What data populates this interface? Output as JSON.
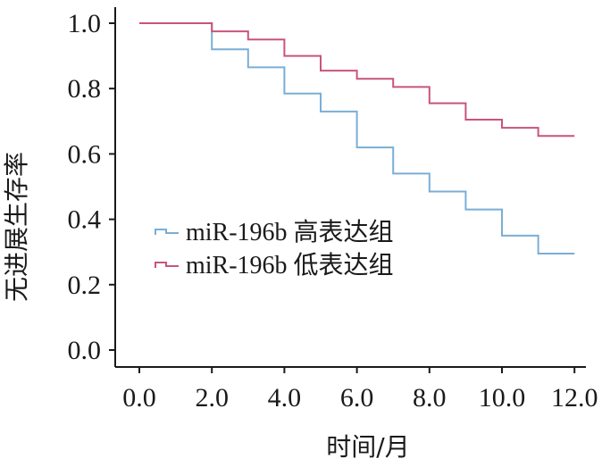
{
  "chart_data": {
    "type": "line",
    "step": true,
    "xlabel": "时间/月",
    "ylabel": "无进展生存率",
    "xlim": [
      -0.7,
      14.2
    ],
    "ylim": [
      -0.05,
      1.05
    ],
    "xticks": [
      "0.0",
      "2.0",
      "4.0",
      "6.0",
      "8.0",
      "10.0",
      "12.0"
    ],
    "yticks": [
      "0.0",
      "0.2",
      "0.4",
      "0.6",
      "0.8",
      "1.0"
    ],
    "grid": false,
    "legend_position": "center-left",
    "series": [
      {
        "name": "miR-196b 高表达组",
        "color": "#7aaed6",
        "x": [
          0,
          2,
          3,
          4,
          5,
          6,
          7,
          8,
          9,
          10,
          11,
          12
        ],
        "y": [
          1.0,
          0.92,
          0.865,
          0.785,
          0.73,
          0.62,
          0.54,
          0.485,
          0.43,
          0.35,
          0.295,
          0.295
        ]
      },
      {
        "name": "miR-196b 低表达组",
        "color": "#c9547a",
        "x": [
          0,
          2,
          3,
          4,
          5,
          6,
          7,
          8,
          9,
          10,
          11,
          12
        ],
        "y": [
          1.0,
          0.975,
          0.95,
          0.9,
          0.855,
          0.83,
          0.805,
          0.755,
          0.705,
          0.68,
          0.655,
          0.655
        ]
      }
    ]
  }
}
